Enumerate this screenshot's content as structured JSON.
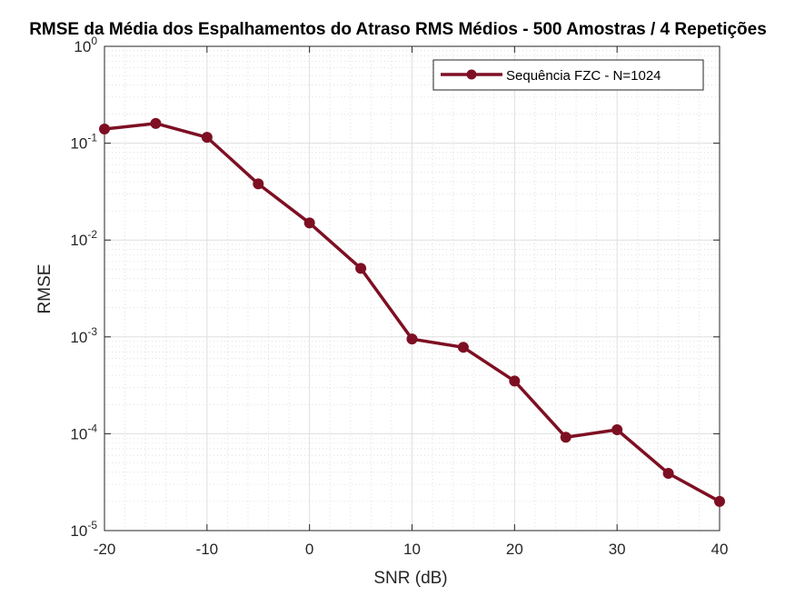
{
  "chart_data": {
    "type": "line",
    "title": "RMSE da Média dos Espalhamentos do Atraso RMS Médios - 500 Amostras / 4 Repetições",
    "xlabel": "SNR (dB)",
    "ylabel": "RMSE",
    "x_scale": "linear",
    "y_scale": "log",
    "xlim": [
      -20,
      40
    ],
    "ylim": [
      1e-05,
      1
    ],
    "x_ticks": [
      -20,
      -10,
      0,
      10,
      20,
      30,
      40
    ],
    "x_tick_labels": [
      "-20",
      "-10",
      "0",
      "10",
      "20",
      "30",
      "40"
    ],
    "y_tick_exponents": [
      -5,
      -4,
      -3,
      -2,
      -1,
      0
    ],
    "y_tick_base": "10",
    "grid": true,
    "minor_grid": true,
    "legend_location": "top-right",
    "series": [
      {
        "name": "Sequência FZC - N=1024",
        "color": "#7E0F23",
        "marker": "circle",
        "x": [
          -20,
          -15,
          -10,
          -5,
          0,
          5,
          10,
          15,
          20,
          25,
          30,
          35,
          40
        ],
        "y": [
          0.14,
          0.16,
          0.115,
          0.038,
          0.015,
          0.0051,
          0.00095,
          0.00078,
          0.00035,
          9.2e-05,
          0.00011,
          3.9e-05,
          2e-05
        ]
      }
    ]
  }
}
